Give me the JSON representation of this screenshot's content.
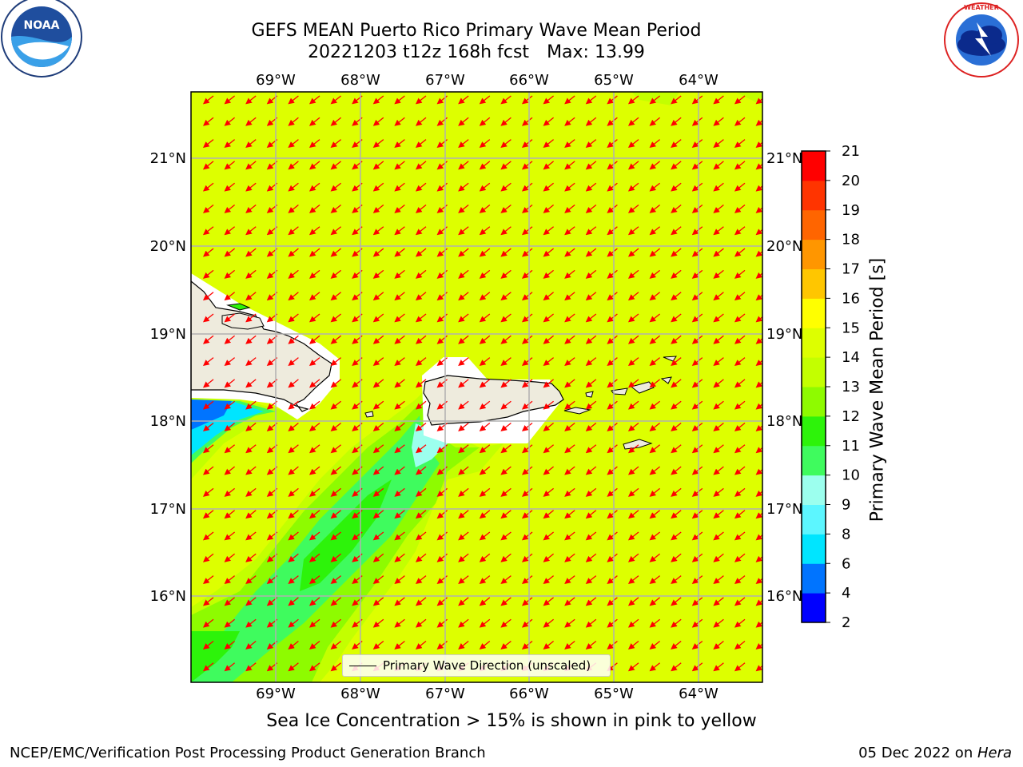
{
  "title": {
    "line1": "GEFS MEAN Puerto Rico Primary Wave Mean Period",
    "line2": "20221203 t12z 168h fcst",
    "max": "Max: 13.99"
  },
  "logos": {
    "left": "NOAA",
    "right": "NATIONAL WEATHER SERVICE"
  },
  "map": {
    "lon_labels": [
      "69°W",
      "68°W",
      "67°W",
      "66°W",
      "65°W",
      "64°W"
    ],
    "lat_labels": [
      "21°N",
      "20°N",
      "19°N",
      "18°N",
      "17°N",
      "16°N"
    ],
    "field_color": "#ddff00",
    "land_color": "#eeebdd",
    "arrow_color": "#ff0000"
  },
  "legend": {
    "label": "Primary Wave Direction (unscaled)"
  },
  "colorbar": {
    "title": "Primary Wave Mean Period [s]",
    "ticks": [
      "2",
      "4",
      "6",
      "8",
      "9",
      "10",
      "11",
      "12",
      "13",
      "14",
      "15",
      "16",
      "17",
      "18",
      "19",
      "20",
      "21"
    ],
    "colors": [
      "#0000ff",
      "#0074ff",
      "#00e5ff",
      "#5cf6ff",
      "#9cffee",
      "#3ffb5e",
      "#2df30a",
      "#8efb00",
      "#c3ff00",
      "#ddff00",
      "#ffff00",
      "#ffc600",
      "#ff9600",
      "#ff6500",
      "#ff3400",
      "#ff0000"
    ]
  },
  "caption": "Sea Ice Concentration > 15% is shown in pink to yellow",
  "footer": {
    "left": "NCEP/EMC/Verification Post Processing Product Generation Branch",
    "date": "05 Dec 2022 on ",
    "host": "Hera"
  }
}
